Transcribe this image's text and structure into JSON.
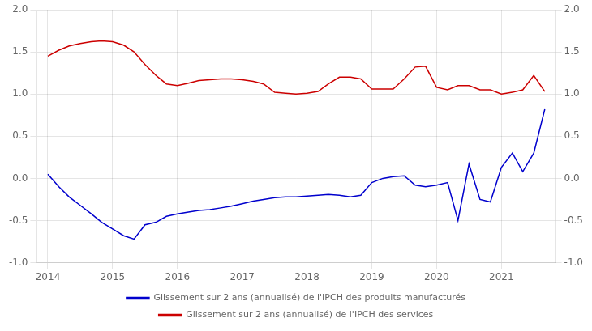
{
  "chart_data": {
    "type": "line",
    "x": [
      2014.0,
      2014.17,
      2014.33,
      2014.5,
      2014.67,
      2014.83,
      2015.0,
      2015.17,
      2015.33,
      2015.5,
      2015.67,
      2015.83,
      2016.0,
      2016.17,
      2016.33,
      2016.5,
      2016.67,
      2016.83,
      2017.0,
      2017.17,
      2017.33,
      2017.5,
      2017.67,
      2017.83,
      2018.0,
      2018.17,
      2018.33,
      2018.5,
      2018.67,
      2018.83,
      2019.0,
      2019.17,
      2019.33,
      2019.5,
      2019.67,
      2019.83,
      2020.0,
      2020.17,
      2020.33,
      2020.5,
      2020.67,
      2020.83,
      2021.0,
      2021.17,
      2021.33,
      2021.5,
      2021.67
    ],
    "series": [
      {
        "name": "Glissement sur 2 ans (annualisé) de l'IPCH des produits manufacturés",
        "color": "#0000cd",
        "values": [
          0.05,
          -0.1,
          -0.22,
          -0.32,
          -0.42,
          -0.52,
          -0.6,
          -0.68,
          -0.72,
          -0.55,
          -0.52,
          -0.45,
          -0.42,
          -0.4,
          -0.38,
          -0.37,
          -0.35,
          -0.33,
          -0.3,
          -0.27,
          -0.25,
          -0.23,
          -0.22,
          -0.22,
          -0.21,
          -0.2,
          -0.19,
          -0.2,
          -0.22,
          -0.2,
          -0.05,
          0.0,
          0.02,
          0.03,
          -0.08,
          -0.1,
          -0.08,
          -0.05,
          -0.5,
          0.17,
          -0.25,
          -0.28,
          0.13,
          0.3,
          0.08,
          0.3,
          0.82
        ]
      },
      {
        "name": "Glissement sur 2 ans (annualisé) de l'IPCH des services",
        "color": "#cc0000",
        "values": [
          1.45,
          1.52,
          1.57,
          1.6,
          1.62,
          1.63,
          1.62,
          1.58,
          1.5,
          1.35,
          1.22,
          1.12,
          1.1,
          1.13,
          1.16,
          1.17,
          1.18,
          1.18,
          1.17,
          1.15,
          1.12,
          1.02,
          1.01,
          1.0,
          1.01,
          1.03,
          1.12,
          1.2,
          1.2,
          1.18,
          1.06,
          1.06,
          1.06,
          1.18,
          1.32,
          1.33,
          1.08,
          1.05,
          1.1,
          1.1,
          1.05,
          1.05,
          1.0,
          1.02,
          1.05,
          1.22,
          1.03
        ]
      }
    ],
    "xlim": [
      2013.83,
      2021.83
    ],
    "xticks": [
      2014,
      2015,
      2016,
      2017,
      2018,
      2019,
      2020,
      2021
    ],
    "ylim": [
      -1.0,
      2.0
    ],
    "yticks": [
      {
        "value": -1.0,
        "label": "-1.0"
      },
      {
        "value": -0.5,
        "label": "-0.5"
      },
      {
        "value": 0.0,
        "label": "0.0"
      },
      {
        "value": 0.5,
        "label": "0.5"
      },
      {
        "value": 1.0,
        "label": "1.0"
      },
      {
        "value": 1.5,
        "label": "1.5"
      },
      {
        "value": 2.0,
        "label": "2.0"
      }
    ],
    "y2lim": [
      -1.0,
      2.0
    ],
    "y2ticks": [
      {
        "value": -1.0,
        "label": "-1.0"
      },
      {
        "value": -0.5,
        "label": "-0.5"
      },
      {
        "value": 0.0,
        "label": "0.0"
      },
      {
        "value": 0.5,
        "label": "0.5"
      },
      {
        "value": 1.0,
        "label": "1.0"
      },
      {
        "value": 1.5,
        "label": "1.5"
      },
      {
        "value": 2.0,
        "label": "2.0"
      }
    ],
    "grid": true,
    "legend": "bottom"
  }
}
